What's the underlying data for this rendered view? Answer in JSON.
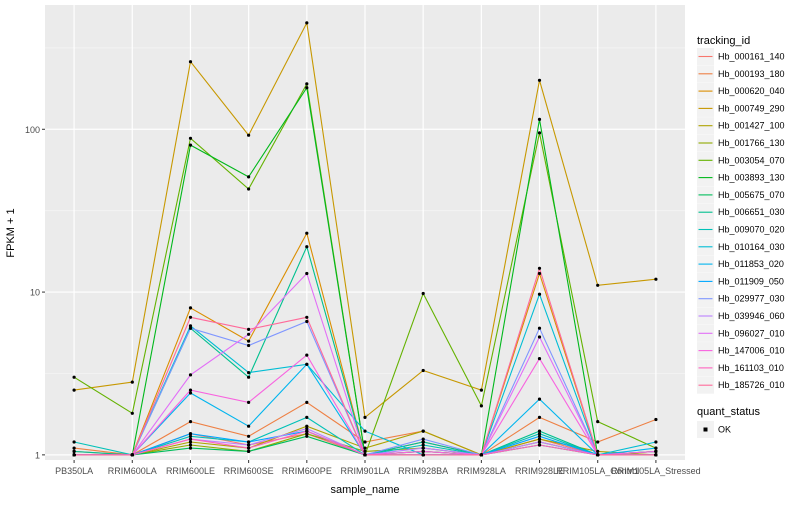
{
  "chart_data": {
    "type": "line",
    "title": "",
    "xlabel": "sample_name",
    "ylabel": "FPKM + 1",
    "yscale": "log10",
    "ylim": [
      0.93,
      580
    ],
    "y_ticks": [
      1,
      10,
      100
    ],
    "y_tick_labels": [
      "1",
      "10",
      "100"
    ],
    "grid": true,
    "legend_position": "right",
    "categories": [
      "PB350LA",
      "RRIM600LA",
      "RRIM600LE",
      "RRIM600SE",
      "RRIM600PE",
      "RRIM901LA",
      "RRIM928BA",
      "RRIM928LA",
      "RRIM928LE",
      "RRIM105LA_Control",
      "RRIM105LA_Stressed"
    ],
    "legend_title": "tracking_id",
    "series": [
      {
        "name": "Hb_000161_140",
        "color": "#F8766D",
        "values": [
          1.05,
          1.0,
          1.35,
          1.15,
          1.35,
          1.0,
          1.2,
          1.0,
          1.25,
          1.0,
          1.05
        ]
      },
      {
        "name": "Hb_000193_180",
        "color": "#EE8044",
        "values": [
          1.1,
          1.0,
          1.6,
          1.3,
          2.1,
          1.2,
          1.4,
          1.0,
          1.7,
          1.2,
          1.65
        ]
      },
      {
        "name": "Hb_000620_040",
        "color": "#DB8E00",
        "values": [
          1.0,
          1.0,
          8.0,
          5.0,
          23.0,
          1.0,
          1.05,
          1.0,
          13.0,
          1.0,
          1.0
        ]
      },
      {
        "name": "Hb_000749_290",
        "color": "#C79800",
        "values": [
          2.5,
          2.8,
          260.0,
          92.0,
          450.0,
          1.7,
          3.3,
          2.5,
          200.0,
          11.0,
          12.0
        ]
      },
      {
        "name": "Hb_001427_100",
        "color": "#AEA200",
        "values": [
          1.0,
          1.0,
          1.2,
          1.1,
          1.5,
          1.1,
          1.4,
          1.0,
          1.25,
          1.05,
          1.0
        ]
      },
      {
        "name": "Hb_001766_130",
        "color": "#8FAA00",
        "values": [
          1.0,
          1.0,
          1.15,
          1.05,
          1.35,
          1.05,
          1.1,
          1.0,
          1.2,
          1.0,
          1.05
        ]
      },
      {
        "name": "Hb_003054_070",
        "color": "#64B200",
        "values": [
          3.0,
          1.8,
          88.0,
          43.0,
          190.0,
          1.0,
          9.8,
          2.0,
          95.0,
          1.6,
          1.1
        ]
      },
      {
        "name": "Hb_003893_130",
        "color": "#00B81B",
        "values": [
          1.0,
          1.0,
          80.0,
          51.0,
          180.0,
          1.0,
          1.0,
          1.0,
          115.0,
          1.0,
          1.0
        ]
      },
      {
        "name": "Hb_005675_070",
        "color": "#00BD5C",
        "values": [
          1.0,
          1.0,
          1.1,
          1.05,
          1.3,
          1.0,
          1.05,
          1.0,
          1.15,
          1.0,
          1.0
        ]
      },
      {
        "name": "Hb_006651_030",
        "color": "#00C08E",
        "values": [
          1.05,
          1.0,
          6.0,
          3.0,
          19.0,
          1.0,
          1.2,
          1.0,
          1.4,
          1.0,
          1.0
        ]
      },
      {
        "name": "Hb_009070_020",
        "color": "#00C1B7",
        "values": [
          1.2,
          1.0,
          1.3,
          1.2,
          1.7,
          1.0,
          1.15,
          1.0,
          1.35,
          1.0,
          1.05
        ]
      },
      {
        "name": "Hb_010164_030",
        "color": "#00BDD4",
        "values": [
          1.0,
          1.0,
          6.2,
          3.2,
          3.6,
          1.4,
          1.0,
          1.0,
          9.7,
          1.0,
          1.2
        ]
      },
      {
        "name": "Hb_011853_020",
        "color": "#00B5EE",
        "values": [
          1.0,
          1.0,
          2.4,
          1.5,
          3.6,
          1.0,
          1.0,
          1.0,
          2.2,
          1.0,
          1.1
        ]
      },
      {
        "name": "Hb_011909_050",
        "color": "#00A7FF",
        "values": [
          1.0,
          1.0,
          1.35,
          1.2,
          1.4,
          1.0,
          1.0,
          1.0,
          1.3,
          1.0,
          1.0
        ]
      },
      {
        "name": "Hb_029977_030",
        "color": "#7F96FF",
        "values": [
          1.0,
          1.0,
          6.0,
          4.7,
          6.6,
          1.0,
          1.25,
          1.0,
          6.0,
          1.0,
          1.0
        ]
      },
      {
        "name": "Hb_039946_060",
        "color": "#BC81FF",
        "values": [
          1.0,
          1.0,
          1.25,
          1.15,
          1.45,
          1.0,
          1.1,
          1.0,
          1.2,
          1.0,
          1.0
        ]
      },
      {
        "name": "Hb_096027_010",
        "color": "#E26EF7",
        "values": [
          1.0,
          1.0,
          3.1,
          5.5,
          13.0,
          1.0,
          1.0,
          1.0,
          5.3,
          1.0,
          1.0
        ]
      },
      {
        "name": "Hb_147006_010",
        "color": "#F863DF",
        "values": [
          1.0,
          1.0,
          2.5,
          2.1,
          4.1,
          1.0,
          1.05,
          1.0,
          3.9,
          1.0,
          1.05
        ]
      },
      {
        "name": "Hb_161103_010",
        "color": "#FF62BF",
        "values": [
          1.0,
          1.0,
          1.25,
          1.1,
          1.4,
          1.0,
          1.0,
          1.0,
          1.15,
          1.0,
          1.0
        ]
      },
      {
        "name": "Hb_185726_010",
        "color": "#FF6A9A",
        "values": [
          1.0,
          1.0,
          7.0,
          5.9,
          7.0,
          1.0,
          1.0,
          1.0,
          14.0,
          1.0,
          1.0
        ]
      }
    ],
    "points_legend": {
      "title": "quant_status",
      "items": [
        "OK"
      ]
    }
  }
}
